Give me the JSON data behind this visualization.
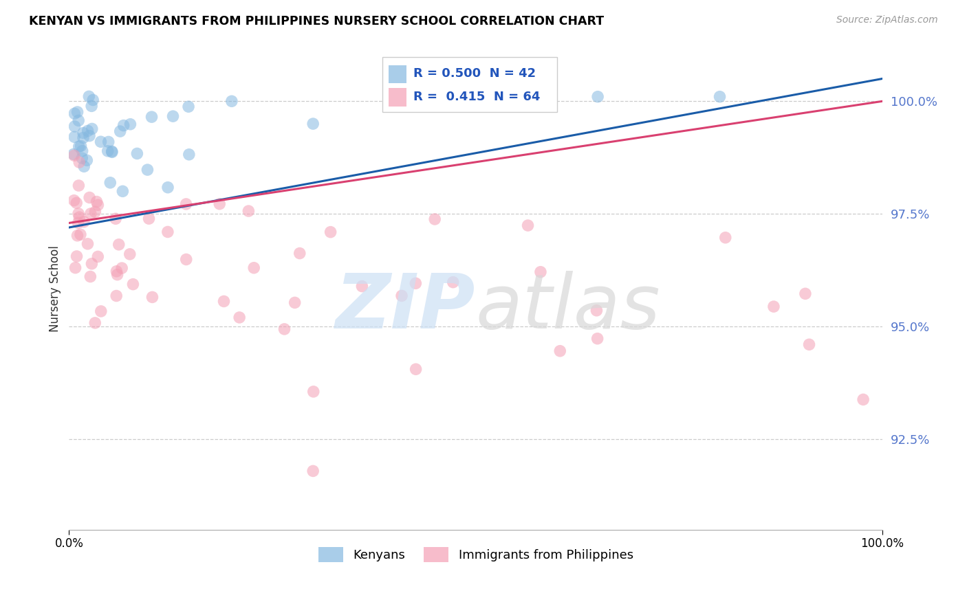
{
  "title": "KENYAN VS IMMIGRANTS FROM PHILIPPINES NURSERY SCHOOL CORRELATION CHART",
  "source": "Source: ZipAtlas.com",
  "ylabel": "Nursery School",
  "xlim": [
    0.0,
    100.0
  ],
  "ylim": [
    90.5,
    101.2
  ],
  "yticks": [
    92.5,
    95.0,
    97.5,
    100.0
  ],
  "xtick_labels": [
    "0.0%",
    "100.0%"
  ],
  "ytick_labels": [
    "92.5%",
    "95.0%",
    "97.5%",
    "100.0%"
  ],
  "blue_R": 0.5,
  "blue_N": 42,
  "pink_R": 0.415,
  "pink_N": 64,
  "blue_color": "#85b8e0",
  "pink_color": "#f4a0b5",
  "blue_line_color": "#1a5ca8",
  "pink_line_color": "#d94070",
  "legend_label_blue": "Kenyans",
  "legend_label_pink": "Immigrants from Philippines",
  "blue_line_x0": 0,
  "blue_line_y0": 97.2,
  "blue_line_x1": 100,
  "blue_line_y1": 100.5,
  "pink_line_x0": 0,
  "pink_line_y0": 97.3,
  "pink_line_x1": 100,
  "pink_line_y1": 100.0
}
